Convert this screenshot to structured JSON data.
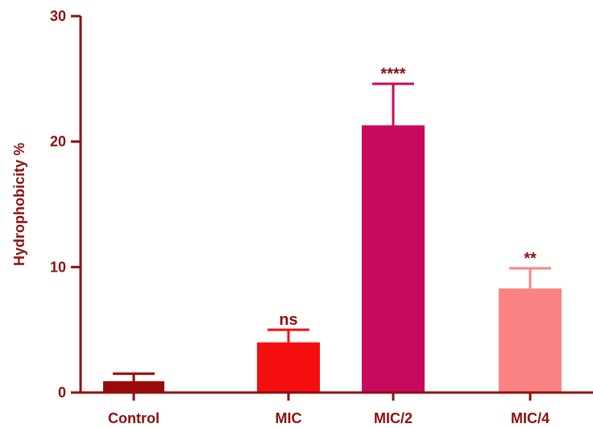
{
  "chart_data": {
    "type": "bar",
    "title": "",
    "xlabel": "",
    "ylabel": "Hydrophobicity %",
    "ylim": [
      0,
      30
    ],
    "yticks": [
      0,
      10,
      20,
      30
    ],
    "categories": [
      "Control",
      "MIC",
      "MIC/2",
      "MIC/4"
    ],
    "values": [
      0.9,
      4.0,
      21.3,
      8.3
    ],
    "errors": [
      0.6,
      1.0,
      3.3,
      1.6
    ],
    "annotations": [
      "",
      "ns",
      "****",
      "**"
    ],
    "colors": [
      "#9b0a0a",
      "#f50f0f",
      "#c80a5c",
      "#fb8383"
    ],
    "axis_color": "#8b1010",
    "grid": false,
    "legend": "none"
  }
}
